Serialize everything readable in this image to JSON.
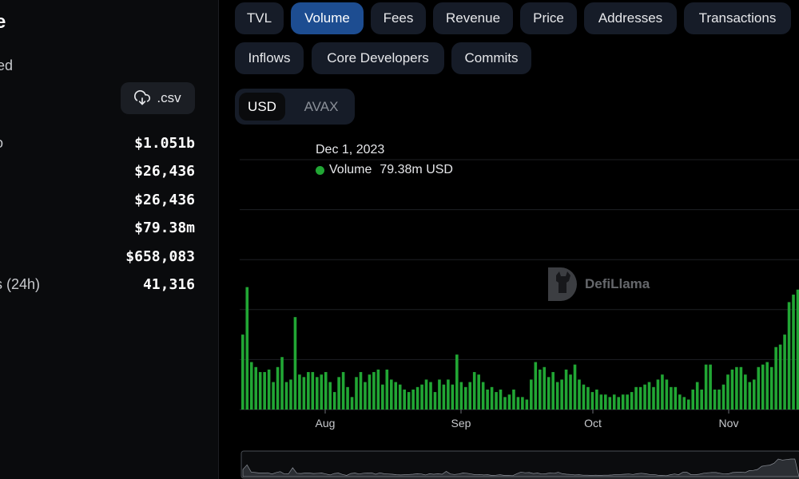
{
  "sidebar": {
    "title_fragment": "e",
    "subtitle_fragment": "ed",
    "csv_label": ".csv",
    "stats": [
      {
        "label": "o",
        "value": "$1.051b"
      },
      {
        "label": "",
        "value": "$26,436"
      },
      {
        "label": "",
        "value": "$26,436"
      },
      {
        "label": "",
        "value": "$79.38m"
      },
      {
        "label": "",
        "value": "$658,083"
      },
      {
        "label": "s (24h)",
        "value": "41,316"
      }
    ]
  },
  "tabs": [
    {
      "label": "TVL",
      "active": false
    },
    {
      "label": "Volume",
      "active": true
    },
    {
      "label": "Fees",
      "active": false
    },
    {
      "label": "Revenue",
      "active": false
    },
    {
      "label": "Price",
      "active": false
    },
    {
      "label": "Addresses",
      "active": false
    },
    {
      "label": "Transactions",
      "active": false
    },
    {
      "label": "Inflows",
      "active": false
    },
    {
      "label": "Core Developers",
      "active": false
    },
    {
      "label": "Commits",
      "active": false
    }
  ],
  "currency": {
    "selected": "USD",
    "options": [
      "USD",
      "AVAX"
    ]
  },
  "tooltip": {
    "date": "Dec 1, 2023",
    "series_name": "Volume",
    "value": "79.38m USD"
  },
  "watermark": "DefiLlama",
  "chart_data": {
    "type": "bar",
    "x_ticks": [
      "Aug",
      "Sep",
      "Oct",
      "Nov"
    ],
    "y_unit": "USD (millions)",
    "ylim": [
      0,
      100
    ],
    "grid": true,
    "bar_color": "#21a634",
    "values": [
      30,
      49,
      19,
      17,
      15,
      15,
      16,
      11,
      17,
      21,
      11,
      12,
      37,
      14,
      13,
      15,
      15,
      13,
      14,
      15,
      11,
      7,
      13,
      15,
      9,
      5,
      13,
      15,
      11,
      14,
      15,
      16,
      10,
      16,
      12,
      11,
      10,
      8,
      7,
      8,
      9,
      10,
      12,
      11,
      7,
      12,
      10,
      12,
      10,
      22,
      11,
      9,
      11,
      15,
      14,
      11,
      8,
      9,
      7,
      8,
      5,
      6,
      8,
      5,
      5,
      4,
      12,
      19,
      16,
      17,
      13,
      15,
      11,
      12,
      16,
      14,
      18,
      12,
      10,
      9,
      7,
      8,
      6,
      6,
      5,
      6,
      5,
      6,
      6,
      7,
      9,
      9,
      10,
      11,
      9,
      12,
      14,
      12,
      9,
      9,
      6,
      5,
      4,
      8,
      11,
      8,
      18,
      18,
      8,
      8,
      10,
      14,
      16,
      17,
      17,
      14,
      11,
      12,
      17,
      18,
      19,
      17,
      25,
      26,
      30,
      43,
      46,
      48,
      56,
      78,
      69,
      71,
      79,
      74
    ]
  }
}
